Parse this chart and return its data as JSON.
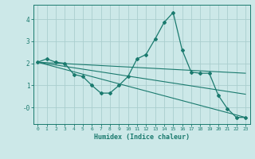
{
  "x": [
    0,
    1,
    2,
    3,
    4,
    5,
    6,
    7,
    8,
    9,
    10,
    11,
    12,
    13,
    14,
    15,
    16,
    17,
    18,
    19,
    20,
    21,
    22,
    23
  ],
  "line1": [
    2.05,
    2.2,
    2.05,
    2.0,
    1.5,
    1.4,
    1.0,
    0.65,
    0.65,
    1.0,
    1.4,
    2.2,
    2.4,
    3.1,
    3.85,
    4.3,
    2.6,
    1.6,
    1.55,
    1.55,
    0.55,
    -0.05,
    -0.45,
    -0.45
  ],
  "trend1_x": [
    0,
    23
  ],
  "trend1_y": [
    2.05,
    1.55
  ],
  "trend2_x": [
    0,
    23
  ],
  "trend2_y": [
    2.05,
    -0.45
  ],
  "trend3_x": [
    0,
    23
  ],
  "trend3_y": [
    2.05,
    0.6
  ],
  "line_color": "#1a7a6e",
  "bg_color": "#cce8e8",
  "grid_color": "#aacece",
  "xlabel": "Humidex (Indice chaleur)",
  "ylim": [
    -0.75,
    4.65
  ],
  "xlim": [
    -0.5,
    23.5
  ]
}
